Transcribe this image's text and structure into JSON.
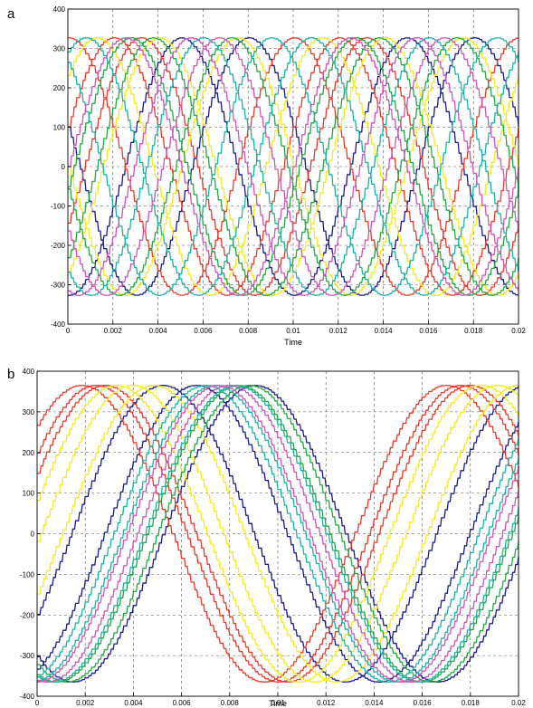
{
  "panels": [
    {
      "letter": "a"
    },
    {
      "letter": "b"
    }
  ],
  "chart_data": [
    {
      "type": "line",
      "panel": "a",
      "xlabel": "Time",
      "ylabel": "",
      "xlim": [
        0,
        0.02
      ],
      "ylim": [
        -400,
        400
      ],
      "x_ticks": [
        "0",
        "0.002",
        "0.004",
        "0.006",
        "0.008",
        "0.01",
        "0.012",
        "0.014",
        "0.016",
        "0.018",
        "0.02"
      ],
      "y_ticks": [
        "400",
        "300",
        "200",
        "100",
        "0",
        "-100",
        "-200",
        "-300",
        "-400"
      ],
      "grid": true,
      "waveform": "staircase sinusoids",
      "amplitude": 327,
      "frequency_hz": 100,
      "series": [
        {
          "color": "#1a1a8c",
          "phase_deg": -90
        },
        {
          "color": "#1a1a8c",
          "phase_deg": 162
        },
        {
          "color": "#e8392a",
          "phase_deg": 90
        },
        {
          "color": "#e8392a",
          "phase_deg": -26
        },
        {
          "color": "#e8392a",
          "phase_deg": 18
        },
        {
          "color": "#f5ea1c",
          "phase_deg": 180
        },
        {
          "color": "#f5ea1c",
          "phase_deg": 45
        },
        {
          "color": "#f5ea1c",
          "phase_deg": -55
        },
        {
          "color": "#22a845",
          "phase_deg": -45
        },
        {
          "color": "#22a845",
          "phase_deg": -9
        },
        {
          "color": "#22a845",
          "phase_deg": -170
        },
        {
          "color": "#1ab3a6",
          "phase_deg": 126
        },
        {
          "color": "#1ab3a6",
          "phase_deg": 63
        },
        {
          "color": "#1ab3a6",
          "phase_deg": -125
        },
        {
          "color": "#cc55b8",
          "phase_deg": -150
        },
        {
          "color": "#cc55b8",
          "phase_deg": -105
        },
        {
          "color": "#cc55b8",
          "phase_deg": 0
        }
      ]
    },
    {
      "type": "line",
      "panel": "b",
      "xlabel": "Time",
      "ylabel": "",
      "xlim": [
        0,
        0.02
      ],
      "ylim": [
        -400,
        400
      ],
      "x_ticks": [
        "0",
        "0.002",
        "0.004",
        "0.006",
        "0.008",
        "0.01",
        "0.012",
        "0.014",
        "0.016",
        "0.018",
        "0.02"
      ],
      "y_ticks": [
        "400",
        "300",
        "200",
        "100",
        "0",
        "-100",
        "-200",
        "-300",
        "-400"
      ],
      "grid": true,
      "waveform": "staircase sinusoids",
      "amplitude": 365,
      "frequency_hz": 66,
      "series": [
        {
          "color": "#1a1a8c",
          "phase_deg": -66
        },
        {
          "color": "#1a1a8c",
          "phase_deg": -124
        },
        {
          "color": "#1a1a8c",
          "phase_deg": -33
        },
        {
          "color": "#e8392a",
          "phase_deg": 47
        },
        {
          "color": "#e8392a",
          "phase_deg": 33
        },
        {
          "color": "#e8392a",
          "phase_deg": 24
        },
        {
          "color": "#f5ea1c",
          "phase_deg": 13
        },
        {
          "color": "#f5ea1c",
          "phase_deg": -3
        },
        {
          "color": "#f5ea1c",
          "phase_deg": -24
        },
        {
          "color": "#22a845",
          "phase_deg": -118
        },
        {
          "color": "#22a845",
          "phase_deg": -108
        },
        {
          "color": "#1ab3a6",
          "phase_deg": -105
        },
        {
          "color": "#1ab3a6",
          "phase_deg": -84
        },
        {
          "color": "#1ab3a6",
          "phase_deg": -75
        },
        {
          "color": "#cc55b8",
          "phase_deg": -98
        },
        {
          "color": "#cc55b8",
          "phase_deg": -88
        }
      ]
    }
  ]
}
